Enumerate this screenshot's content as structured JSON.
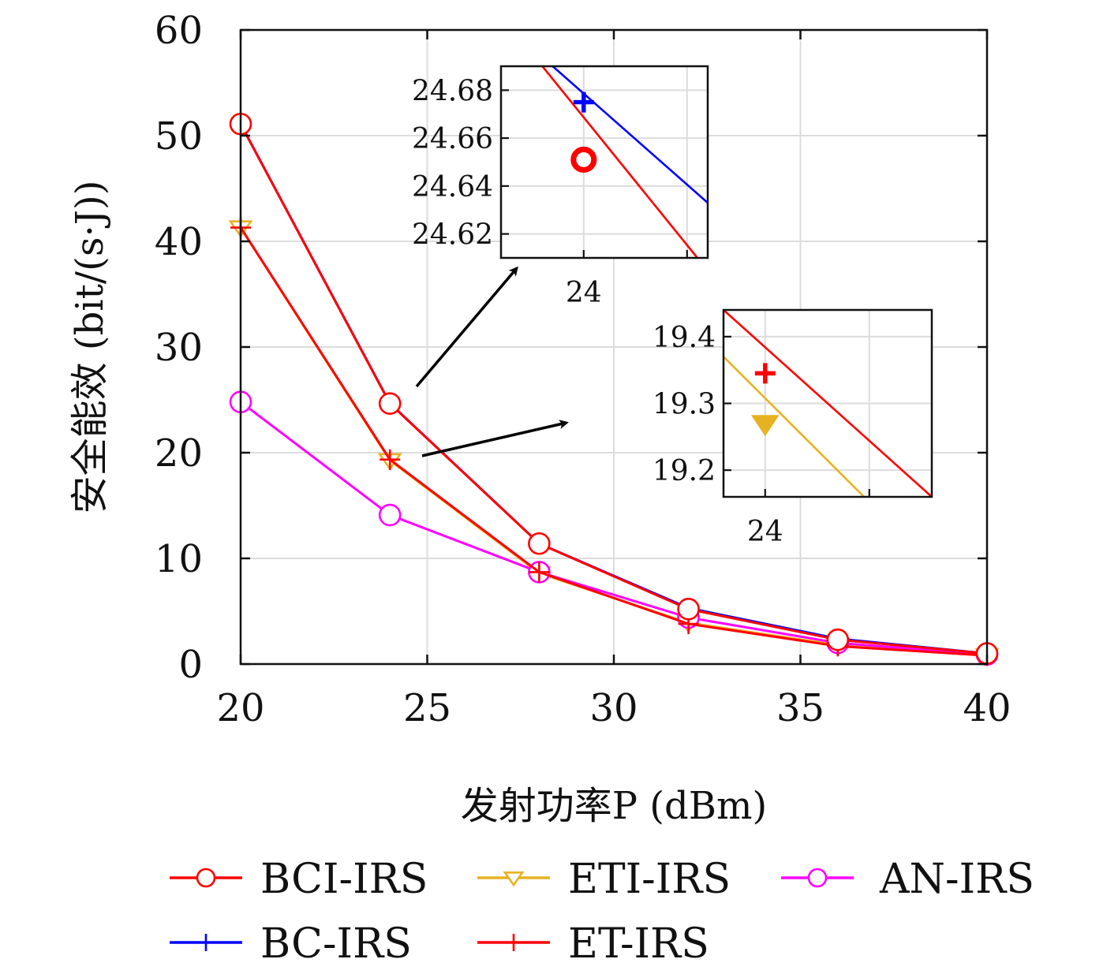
{
  "chart_data": {
    "type": "line",
    "xlabel": "发射功率P (dBm)",
    "ylabel": "安全能效 (bit/(s·J))",
    "xlim": [
      20,
      40
    ],
    "ylim": [
      0,
      60
    ],
    "xticks": [
      20,
      25,
      30,
      35,
      40
    ],
    "yticks": [
      0,
      10,
      20,
      30,
      40,
      50,
      60
    ],
    "grid": true,
    "legend_placement": "bottom",
    "x": [
      20,
      24,
      28,
      32,
      36,
      40
    ],
    "series": [
      {
        "name": "BCI-IRS",
        "color": "#ff0000",
        "marker": "circle",
        "values": [
          51.1,
          24.65,
          11.4,
          5.2,
          2.3,
          1.0
        ]
      },
      {
        "name": "ETI-IRS",
        "color": "#e6b222",
        "marker": "triangle-down",
        "values": [
          41.3,
          19.27,
          8.6,
          3.9,
          1.8,
          0.8
        ]
      },
      {
        "name": "AN-IRS",
        "color": "#ff00ff",
        "marker": "circle",
        "values": [
          24.8,
          14.1,
          8.7,
          4.4,
          2.0,
          0.9
        ]
      },
      {
        "name": "BC-IRS",
        "color": "#0000ff",
        "marker": "plus",
        "values": [
          51.1,
          24.67,
          11.4,
          5.3,
          2.4,
          1.0
        ]
      },
      {
        "name": "ET-IRS",
        "color": "#ff0000",
        "marker": "plus",
        "values": [
          41.3,
          19.35,
          8.7,
          3.8,
          1.7,
          0.8
        ]
      }
    ],
    "insets": [
      {
        "xlim": [
          23.2,
          25.2
        ],
        "ylim": [
          24.61,
          24.69
        ],
        "xticks": [
          24
        ],
        "yticks": [
          24.62,
          24.64,
          24.66,
          24.68
        ],
        "ytick_labels": [
          "24.62",
          "24.64",
          "24.66",
          "24.68"
        ],
        "lines": [
          {
            "color": "#0000ff",
            "marker": "plus",
            "x0": 23.7,
            "y0": 24.69,
            "x1": 25.2,
            "y1": 24.633,
            "mx": 24.0,
            "my": 24.675
          },
          {
            "color": "#ff0000",
            "marker": "circle",
            "x0": 23.6,
            "y0": 24.69,
            "x1": 25.1,
            "y1": 24.61,
            "mx": 24.0,
            "my": 24.651
          }
        ]
      },
      {
        "xlim": [
          23.6,
          25.6
        ],
        "ylim": [
          19.16,
          19.44
        ],
        "xticks": [
          24
        ],
        "yticks": [
          19.2,
          19.3,
          19.4
        ],
        "ytick_labels": [
          "19.2",
          "19.3",
          "19.4"
        ],
        "lines": [
          {
            "color": "#ff0000",
            "marker": "plus",
            "x0": 23.6,
            "y0": 19.44,
            "x1": 25.6,
            "y1": 19.16,
            "mx": 24.0,
            "my": 19.345
          },
          {
            "color": "#e6b222",
            "marker": "triangle-down",
            "x0": 23.6,
            "y0": 19.37,
            "x1": 24.95,
            "y1": 19.16,
            "mx": 24.0,
            "my": 19.27
          }
        ]
      }
    ]
  }
}
